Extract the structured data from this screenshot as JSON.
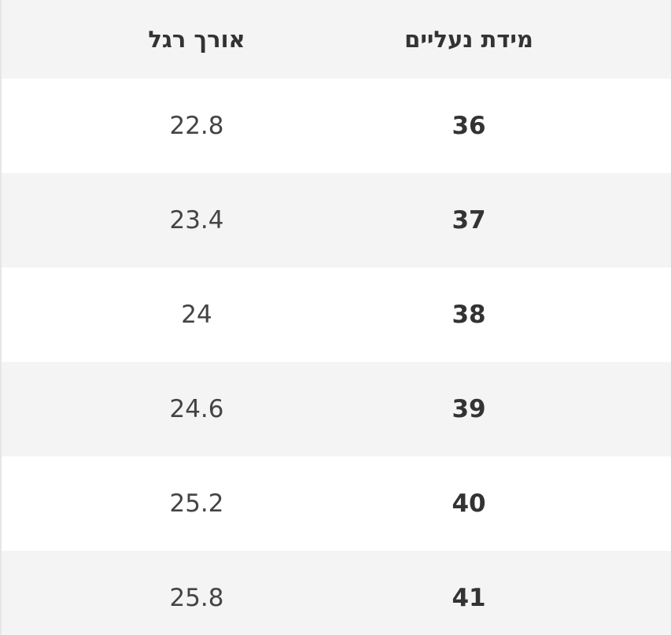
{
  "table": {
    "headers": [
      "אורך רגל",
      "מידת נעליים"
    ],
    "rows": [
      [
        "22.8",
        "36"
      ],
      [
        "23.4",
        "37"
      ],
      [
        "24",
        "38"
      ],
      [
        "24.6",
        "39"
      ],
      [
        "25.2",
        "40"
      ],
      [
        "25.8",
        "41"
      ]
    ]
  }
}
